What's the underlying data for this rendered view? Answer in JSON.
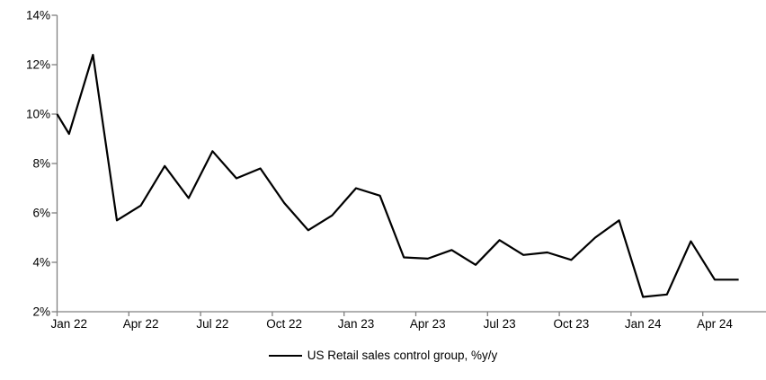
{
  "chart_data": {
    "type": "line",
    "title": "",
    "xlabel": "",
    "ylabel": "",
    "x": [
      "Jan 22",
      "Feb 22",
      "Mar 22",
      "Apr 22",
      "May 22",
      "Jun 22",
      "Jul 22",
      "Aug 22",
      "Sep 22",
      "Oct 22",
      "Nov 22",
      "Dec 22",
      "Jan 23",
      "Feb 23",
      "Mar 23",
      "Apr 23",
      "May 23",
      "Jun 23",
      "Jul 23",
      "Aug 23",
      "Sep 23",
      "Oct 23",
      "Nov 23",
      "Dec 23",
      "Jan 24",
      "Feb 24",
      "Mar 24",
      "Apr 24",
      "May 24"
    ],
    "series": [
      {
        "name": "US Retail sales control group, %y/y",
        "color": "#000000",
        "values": [
          9.2,
          12.4,
          5.7,
          6.3,
          7.9,
          6.6,
          8.5,
          7.4,
          7.8,
          6.4,
          5.3,
          5.9,
          7.0,
          6.7,
          4.2,
          4.15,
          4.5,
          3.9,
          4.9,
          4.3,
          4.4,
          4.1,
          5.0,
          5.7,
          2.6,
          2.7,
          4.85,
          3.3,
          3.3
        ]
      }
    ],
    "lead_in_value_at_left_axis": 10.0,
    "ylim": [
      2,
      14
    ],
    "ytick_step": 2,
    "ytick_labels": [
      "2%",
      "4%",
      "6%",
      "8%",
      "10%",
      "12%",
      "14%"
    ],
    "xtick_labels": [
      "Jan 22",
      "Apr 22",
      "Jul 22",
      "Oct 22",
      "Jan 23",
      "Apr 23",
      "Jul 23",
      "Oct 23",
      "Jan 24",
      "Apr 24"
    ],
    "xtick_label_interval_months": 3,
    "grid": "off",
    "legend_position": "bottom-center",
    "axis_color": "#808080",
    "text_color": "#000000",
    "background_color": "#ffffff"
  },
  "legend": {
    "label": "US Retail sales control group, %y/y"
  }
}
